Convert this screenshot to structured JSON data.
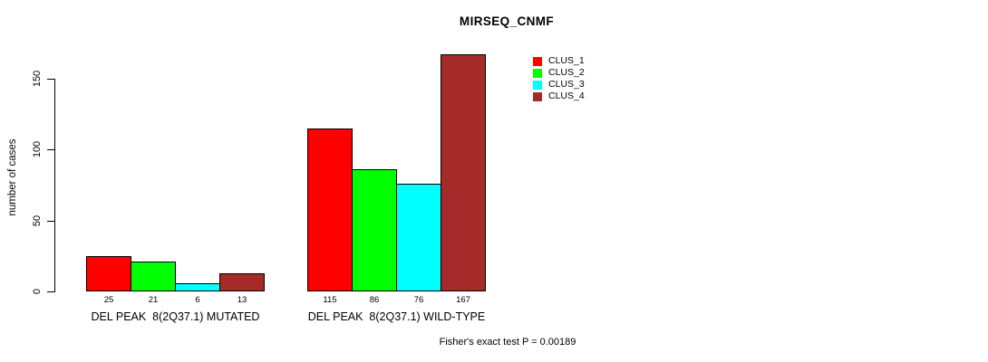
{
  "chart_data": {
    "type": "bar",
    "title": "MIRSEQ_CNMF",
    "ylabel": "number of cases",
    "xlabel": "",
    "yticks": [
      0,
      50,
      100,
      150
    ],
    "ylim": [
      0,
      167
    ],
    "grid": false,
    "legend_position": "top-right-inside",
    "bar_value_labels": true,
    "categories": [
      "DEL PEAK  8(2Q37.1) MUTATED",
      "DEL PEAK  8(2Q37.1) WILD-TYPE"
    ],
    "series": [
      {
        "name": "CLUS_1",
        "color": "#FF0000",
        "values": [
          25,
          115
        ]
      },
      {
        "name": "CLUS_2",
        "color": "#00FF00",
        "values": [
          21,
          86
        ]
      },
      {
        "name": "CLUS_3",
        "color": "#00FFFF",
        "values": [
          6,
          76
        ]
      },
      {
        "name": "CLUS_4",
        "color": "#A52A2A",
        "values": [
          13,
          167
        ]
      }
    ],
    "footnote": "Fisher's exact test P = 0.00189"
  }
}
